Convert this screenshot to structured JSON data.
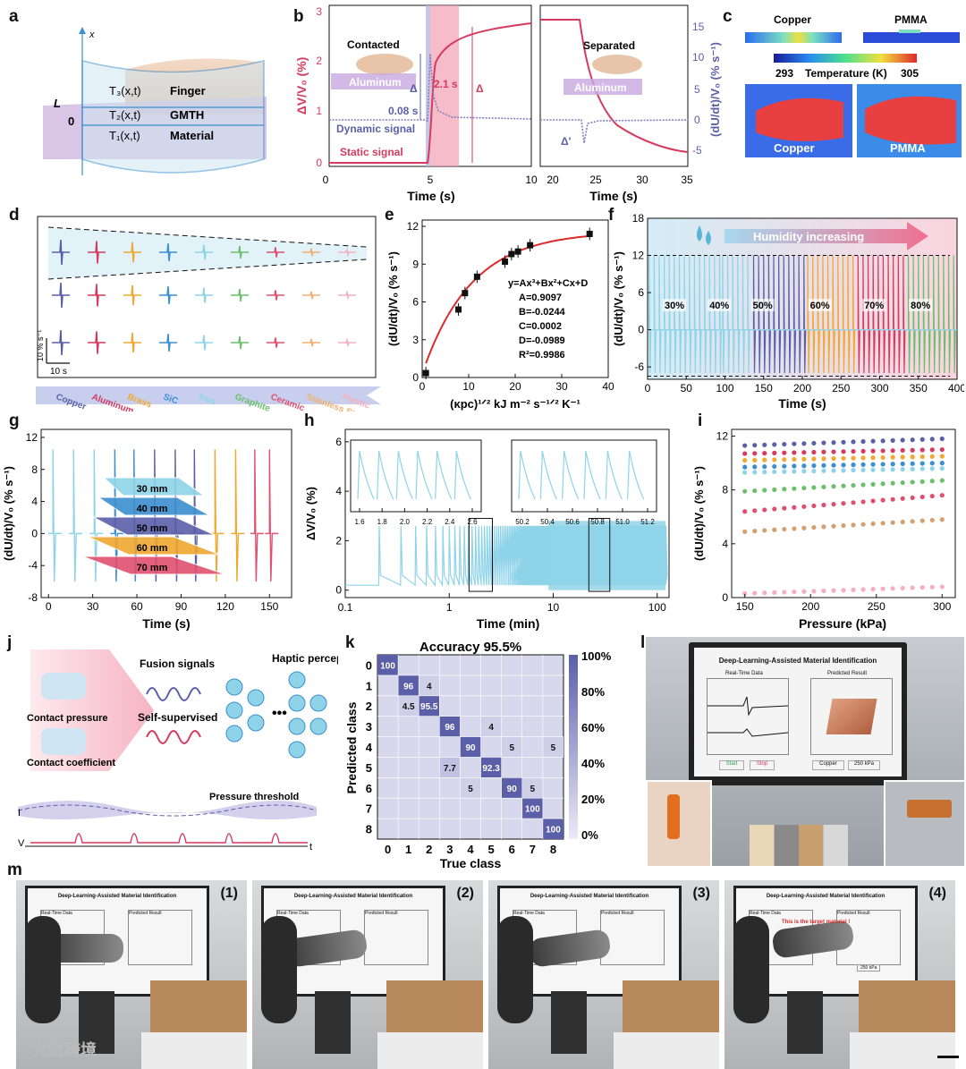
{
  "panel_labels": {
    "a": "a",
    "b": "b",
    "c": "c",
    "d": "d",
    "e": "e",
    "f": "f",
    "g": "g",
    "h": "h",
    "i": "i",
    "j": "j",
    "k": "k",
    "l": "l",
    "m": "m"
  },
  "a": {
    "axis": "x",
    "L": "L",
    "zero": "0",
    "rows": [
      {
        "t": "T₃(x,t)",
        "n": "Finger"
      },
      {
        "t": "T₂(x,t)",
        "n": "GMTH"
      },
      {
        "t": "T₁(x,t)",
        "n": "Material"
      }
    ]
  },
  "b": {
    "ylabel_left": "ΔV/V₀ (%)",
    "ylabel_right": "(dU/dt)/V₀ (% s⁻¹)",
    "xlabel": "Time (s)",
    "contacted": "Contacted",
    "separated": "Separated",
    "aluminum": "Aluminum",
    "dynamic": "Dynamic signal",
    "static": "Static signal",
    "t1": "0.08 s",
    "t2": "2.1 s",
    "delta": "Δ",
    "delta_prime": "Δ'",
    "left_x": [
      "0",
      "5",
      "10"
    ],
    "right_x": [
      "20",
      "25",
      "30",
      "35"
    ],
    "left_y": [
      "0",
      "1",
      "2",
      "3"
    ],
    "right_y": [
      "-5",
      "0",
      "5",
      "10",
      "15"
    ]
  },
  "c": {
    "copper": "Copper",
    "pmma": "PMMA",
    "tmin": "293",
    "tmax": "305",
    "tlabel": "Temperature (K)",
    "img_copper": "Copper",
    "img_pmma": "PMMA"
  },
  "d": {
    "materials": [
      "Copper",
      "Aluminum",
      "Brass",
      "SiC",
      "Iron",
      "Graphite",
      "Ceramic",
      "Stainless Steel",
      "Plastic"
    ],
    "colors": [
      "#5b5fa8",
      "#d63a5e",
      "#f0a830",
      "#3b8fd0",
      "#8fd3e8",
      "#6cbf6c",
      "#e0506e",
      "#f0b070",
      "#f4b0c0"
    ],
    "scale_y": "10 % s⁻¹",
    "scale_x": "10 s"
  },
  "chart_data": [
    {
      "type": "scatter",
      "panel": "e",
      "xlabel": "(κpc)¹ᐟ² kJ m⁻² s⁻¹ᐟ² K⁻¹",
      "ylabel": "(dU/dt)/V₀ (% s⁻¹)",
      "xlim": [
        0,
        40
      ],
      "ylim": [
        0,
        12.5
      ],
      "x": [
        0.8,
        7.8,
        9.2,
        11.8,
        17.8,
        19.2,
        20.6,
        23.2,
        36.0
      ],
      "y": [
        0.35,
        5.4,
        6.7,
        8.0,
        9.2,
        9.8,
        10.0,
        10.5,
        11.4
      ],
      "fit": {
        "equation": "y=Ax³+Bx²+Cx+D",
        "A": "A=0.9097",
        "B": "B=-0.0244",
        "C": "C=0.0002",
        "D": "D=-0.0989",
        "R2": "R²=0.9986"
      },
      "xticks": [
        "0",
        "10",
        "20",
        "30",
        "40"
      ],
      "yticks": [
        "0",
        "3",
        "6",
        "9",
        "12"
      ]
    },
    {
      "type": "line",
      "panel": "f",
      "xlabel": "Time (s)",
      "ylabel": "(dU/dt)/V₀ (% s⁻¹)",
      "xlim": [
        0,
        400
      ],
      "ylim": [
        -8,
        18
      ],
      "title": "Humidity increasing",
      "segments": [
        {
          "label": "30%",
          "x0": 0,
          "x1": 95,
          "color": "#8fd3e8"
        },
        {
          "label": "40%",
          "x0": 95,
          "x1": 135,
          "color": "#8fd3e8"
        },
        {
          "label": "50%",
          "x0": 135,
          "x1": 205,
          "color": "#5b5fa8"
        },
        {
          "label": "60%",
          "x0": 205,
          "x1": 270,
          "color": "#f0a830"
        },
        {
          "label": "70%",
          "x0": 270,
          "x1": 335,
          "color": "#d63a5e"
        },
        {
          "label": "80%",
          "x0": 335,
          "x1": 400,
          "color": "#6cbf6c"
        }
      ],
      "xticks": [
        "0",
        "50",
        "100",
        "150",
        "200",
        "250",
        "300",
        "350",
        "400"
      ],
      "yticks": [
        "-6",
        "0",
        "6",
        "12",
        "18"
      ]
    },
    {
      "type": "line",
      "panel": "g",
      "xlabel": "Time (s)",
      "ylabel": "(dU/dt)/V₀ (% s⁻¹)",
      "xlim": [
        -5,
        165
      ],
      "ylim": [
        -8,
        13
      ],
      "layers": [
        {
          "label": "30 mm",
          "color": "#8fd3e8"
        },
        {
          "label": "40 mm",
          "color": "#3b8fd0"
        },
        {
          "label": "50 mm",
          "color": "#5b5fa8"
        },
        {
          "label": "60 mm",
          "color": "#f0a830"
        },
        {
          "label": "70 mm",
          "color": "#e0506e"
        }
      ],
      "xticks": [
        "0",
        "30",
        "60",
        "90",
        "120",
        "150"
      ],
      "yticks": [
        "-8",
        "-4",
        "0",
        "4",
        "8",
        "12"
      ]
    },
    {
      "type": "line",
      "panel": "h",
      "xlabel": "Time (min)",
      "ylabel": "ΔV/V₀ (%)",
      "xscale": "log",
      "xlim": [
        0.1,
        130
      ],
      "ylim": [
        -0.3,
        6.5
      ],
      "xticks": [
        "0.1",
        "1",
        "10",
        "100"
      ],
      "yticks": [
        "0",
        "2",
        "4",
        "6"
      ],
      "inset1_ticks": [
        "1.6",
        "1.8",
        "2.0",
        "2.2",
        "2.4",
        "2.6"
      ],
      "inset2_ticks": [
        "50.2",
        "50.4",
        "50.6",
        "50.8",
        "51.0",
        "51.2"
      ]
    },
    {
      "type": "scatter",
      "panel": "i",
      "xlabel": "Pressure (kPa)",
      "ylabel": "(dU/dt)/V₀ (% s⁻¹)",
      "xlim": [
        140,
        310
      ],
      "ylim": [
        0,
        12.5
      ],
      "series": [
        {
          "color": "#5b5fa8",
          "y0": 11.3,
          "y1": 11.8
        },
        {
          "color": "#d63a5e",
          "y0": 10.7,
          "y1": 11.0
        },
        {
          "color": "#f0a830",
          "y0": 10.2,
          "y1": 10.5
        },
        {
          "color": "#3b8fd0",
          "y0": 9.7,
          "y1": 10.0
        },
        {
          "color": "#8fd3e8",
          "y0": 9.3,
          "y1": 9.6
        },
        {
          "color": "#6cbf6c",
          "y0": 7.9,
          "y1": 8.7
        },
        {
          "color": "#e0506e",
          "y0": 6.4,
          "y1": 7.6
        },
        {
          "color": "#d4a070",
          "y0": 4.9,
          "y1": 5.8
        },
        {
          "color": "#f4b0c0",
          "y0": 0.3,
          "y1": 0.8
        }
      ],
      "xticks": [
        "150",
        "200",
        "250",
        "300"
      ],
      "yticks": [
        "0",
        "4",
        "8",
        "12"
      ]
    },
    {
      "type": "heatmap",
      "panel": "k",
      "title": "Accuracy 95.5%",
      "xlabel": "True class",
      "ylabel": "Predicted class",
      "labels": [
        "0",
        "1",
        "2",
        "3",
        "4",
        "5",
        "6",
        "7",
        "8"
      ],
      "cells": [
        [
          0,
          0,
          "100"
        ],
        [
          1,
          1,
          "96"
        ],
        [
          2,
          1,
          "4.5"
        ],
        [
          1,
          2,
          "4"
        ],
        [
          2,
          2,
          "95.5"
        ],
        [
          3,
          3,
          "96"
        ],
        [
          5,
          3,
          "7.7"
        ],
        [
          4,
          4,
          "90"
        ],
        [
          6,
          4,
          "5"
        ],
        [
          3,
          5,
          "4"
        ],
        [
          5,
          5,
          "92.3"
        ],
        [
          4,
          6,
          "5"
        ],
        [
          6,
          6,
          "90"
        ],
        [
          6,
          7,
          "5"
        ],
        [
          7,
          7,
          "100"
        ],
        [
          4,
          8,
          "5"
        ],
        [
          8,
          8,
          "100"
        ]
      ],
      "colorbar": [
        "100%",
        "80%",
        "60%",
        "40%",
        "20%",
        "0%"
      ]
    }
  ],
  "j": {
    "pressure": "Contact pressure",
    "coef": "Contact coefficient",
    "fusion": "Fusion signals",
    "self": "Self-supervised",
    "haptic": "Haptic\nperception",
    "threshold": "Pressure threshold",
    "I": "I",
    "V": "V",
    "t": "t"
  },
  "l": {
    "title": "Deep-Learning-Assisted Material Identification",
    "realtime": "Real-Time Data",
    "predicted": "Predicted Result",
    "start": "Start",
    "stop": "Stop",
    "copper": "Copper",
    "kpa": "250 kPa"
  },
  "m": {
    "nums": [
      "(1)",
      "(2)",
      "(3)",
      "(4)"
    ],
    "screen_title": "Deep-Learning-Assisted Material Identification",
    "rt": "Real-Time Data",
    "pr": "Predicted Result",
    "target": "This is the target material !",
    "kpa": "250 kPa"
  },
  "watermark": "大数跨境"
}
